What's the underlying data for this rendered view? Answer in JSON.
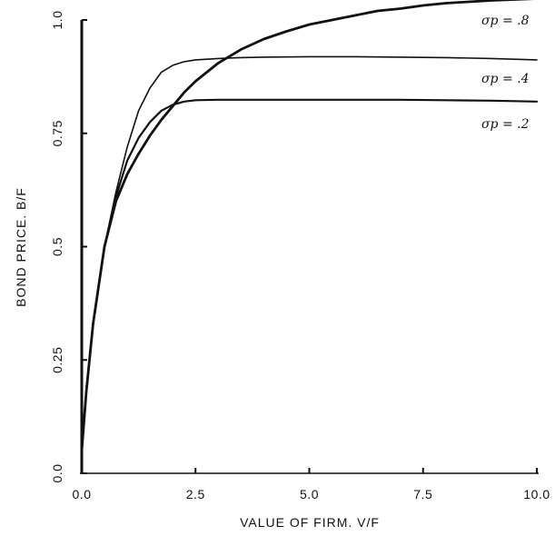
{
  "chart_data": {
    "type": "line",
    "title": "",
    "xlabel": "VALUE OF FIRM. V/F",
    "ylabel": "BOND PRICE. B/F",
    "xlim": [
      0,
      10
    ],
    "ylim": [
      0,
      1.0
    ],
    "x_ticks": [
      "0.0",
      "2.5",
      "5.0",
      "7.5",
      "10.0"
    ],
    "y_ticks": [
      "0.0",
      "0.25",
      "0.5",
      "0.75",
      "1.0"
    ],
    "grid": false,
    "legend": "none",
    "series": [
      {
        "name": "σp = .8",
        "label": "σp = .8",
        "color": "#111111",
        "x": [
          0.0,
          0.1,
          0.25,
          0.5,
          0.75,
          1.0,
          1.25,
          1.5,
          1.75,
          2.0,
          2.25,
          2.5,
          3.0,
          3.5,
          4.0,
          4.5,
          5.0,
          5.5,
          6.0,
          6.5,
          7.0,
          7.5,
          8.0,
          8.5,
          9.0,
          9.5,
          10.0
        ],
        "y": [
          0.05,
          0.18,
          0.33,
          0.5,
          0.6,
          0.66,
          0.705,
          0.745,
          0.78,
          0.81,
          0.84,
          0.865,
          0.905,
          0.935,
          0.958,
          0.975,
          0.99,
          1.0,
          1.01,
          1.02,
          1.025,
          1.032,
          1.037,
          1.04,
          1.043,
          1.045,
          1.047
        ]
      },
      {
        "name": "σp = .4",
        "label": "σp = .4",
        "color": "#111111",
        "x": [
          0.0,
          0.1,
          0.25,
          0.5,
          0.75,
          1.0,
          1.25,
          1.5,
          1.75,
          2.0,
          2.25,
          2.5,
          3.0,
          3.5,
          4.0,
          5.0,
          6.0,
          7.0,
          8.0,
          9.0,
          10.0
        ],
        "y": [
          0.05,
          0.18,
          0.33,
          0.5,
          0.62,
          0.72,
          0.8,
          0.85,
          0.885,
          0.9,
          0.908,
          0.912,
          0.915,
          0.917,
          0.918,
          0.919,
          0.919,
          0.918,
          0.917,
          0.915,
          0.912
        ]
      },
      {
        "name": "σp = .2",
        "label": "σp = .2",
        "color": "#111111",
        "x": [
          0.0,
          0.1,
          0.25,
          0.5,
          0.75,
          1.0,
          1.25,
          1.5,
          1.75,
          2.0,
          2.25,
          2.5,
          3.0,
          3.5,
          4.0,
          5.0,
          6.0,
          7.0,
          8.0,
          9.0,
          10.0
        ],
        "y": [
          0.05,
          0.18,
          0.33,
          0.5,
          0.61,
          0.69,
          0.74,
          0.775,
          0.8,
          0.813,
          0.82,
          0.823,
          0.824,
          0.824,
          0.824,
          0.824,
          0.824,
          0.824,
          0.823,
          0.822,
          0.82
        ]
      }
    ]
  }
}
